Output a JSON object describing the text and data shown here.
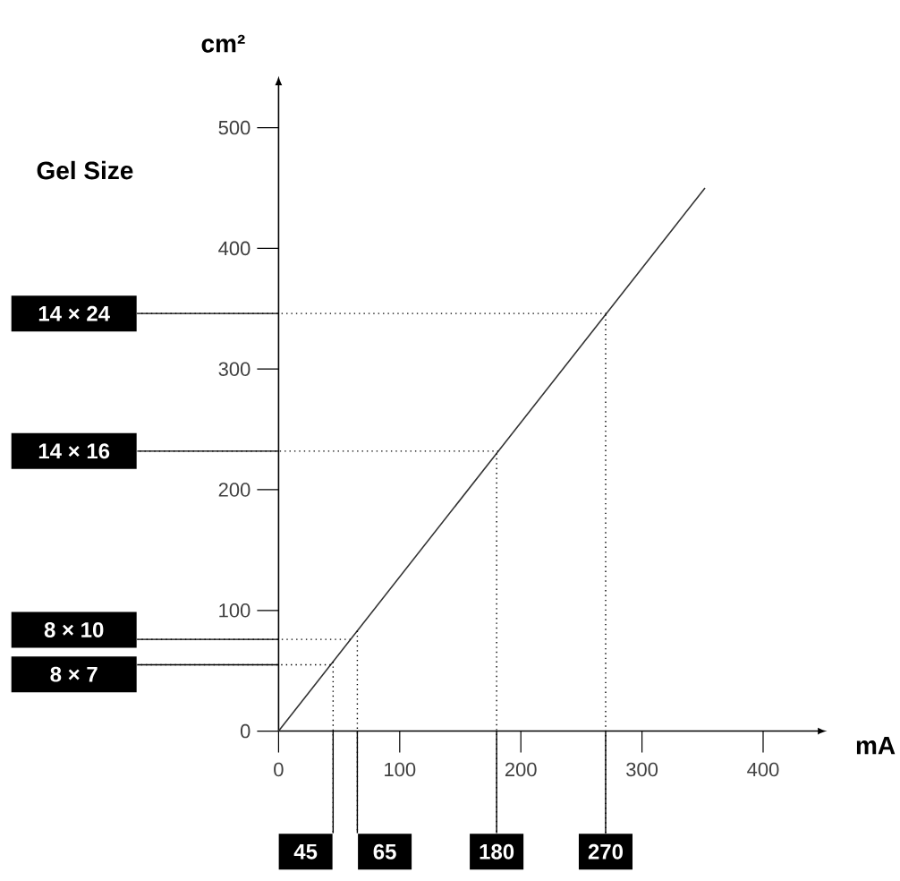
{
  "chart_data": {
    "type": "line",
    "xlabel": "mA",
    "ylabel": "cm²",
    "x": [
      0,
      352
    ],
    "values": [
      0,
      450
    ],
    "color": "#333333",
    "xlim": [
      0,
      444
    ],
    "ylim": [
      0,
      534
    ],
    "xticks": [
      0,
      100,
      200,
      300,
      400
    ],
    "yticks": [
      0,
      100,
      200,
      300,
      400,
      500
    ],
    "ref_lines": [
      {
        "axis": "y",
        "value": 346,
        "label": "14 × 24",
        "line_style": "dotted"
      },
      {
        "axis": "y",
        "value": 232,
        "label": "14 × 16",
        "line_style": "dotted"
      },
      {
        "axis": "y",
        "value": 76,
        "label": "8 × 10",
        "line_style": "dotted"
      },
      {
        "axis": "y",
        "value": 55,
        "label": "8 × 7",
        "line_style": "dotted"
      },
      {
        "axis": "x",
        "value": 45,
        "label": "45",
        "line_style": "dotted"
      },
      {
        "axis": "x",
        "value": 65,
        "label": "65",
        "line_style": "dotted"
      },
      {
        "axis": "x",
        "value": 180,
        "label": "180",
        "line_style": "dotted"
      },
      {
        "axis": "x",
        "value": 270,
        "label": "270",
        "line_style": "dotted"
      }
    ],
    "annotations": [
      "Gel Size"
    ]
  }
}
